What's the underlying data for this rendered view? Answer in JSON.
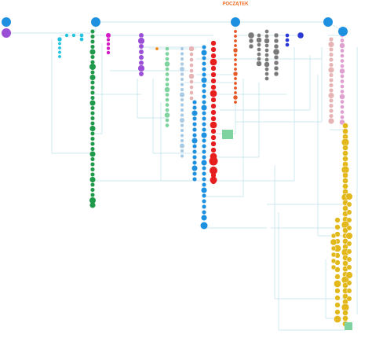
{
  "header": {
    "title": "POCZĄTEK"
  }
}
